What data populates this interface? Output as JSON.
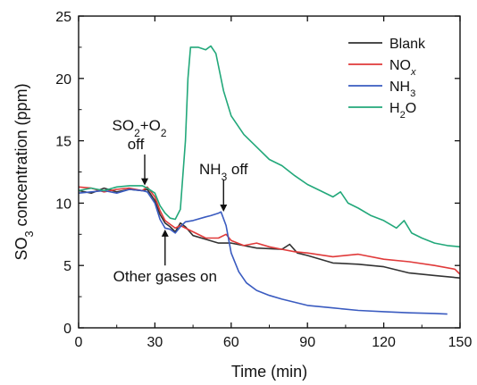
{
  "chart_data": {
    "type": "line",
    "title": "",
    "xlabel": "Time (min)",
    "ylabel": "SO3 concentration (ppm)",
    "xlim": [
      0,
      150
    ],
    "ylim": [
      0,
      25
    ],
    "x_ticks": [
      0,
      30,
      60,
      90,
      120,
      150
    ],
    "y_ticks": [
      0,
      5,
      10,
      15,
      20,
      25
    ],
    "grid": false,
    "legend_position": "top-right",
    "series": [
      {
        "name": "Blank",
        "color": "#333333",
        "x": [
          0,
          5,
          10,
          15,
          20,
          25,
          27,
          30,
          32,
          34,
          36,
          38,
          40,
          42,
          45,
          50,
          55,
          60,
          70,
          80,
          83,
          86,
          90,
          100,
          110,
          120,
          130,
          140,
          150
        ],
        "y": [
          11.0,
          10.8,
          11.2,
          10.9,
          11.1,
          11.0,
          11.1,
          10.2,
          9.1,
          8.4,
          8.1,
          7.7,
          8.4,
          8.1,
          7.4,
          7.1,
          6.8,
          6.8,
          6.4,
          6.3,
          6.7,
          6.0,
          5.8,
          5.2,
          5.1,
          4.9,
          4.4,
          4.2,
          4.0
        ]
      },
      {
        "name": "NOx",
        "color": "#e03a3a",
        "x": [
          0,
          5,
          10,
          15,
          20,
          25,
          27,
          30,
          32,
          34,
          36,
          38,
          40,
          45,
          50,
          55,
          58,
          60,
          65,
          70,
          75,
          80,
          85,
          90,
          100,
          110,
          120,
          130,
          140,
          148,
          150
        ],
        "y": [
          11.3,
          11.2,
          10.9,
          11.1,
          11.2,
          11.0,
          11.3,
          10.5,
          9.4,
          8.6,
          8.3,
          8.0,
          8.2,
          7.7,
          7.2,
          7.2,
          7.5,
          7.0,
          6.6,
          6.8,
          6.5,
          6.3,
          6.1,
          6.0,
          5.7,
          5.9,
          5.5,
          5.3,
          5.0,
          4.7,
          4.3
        ]
      },
      {
        "name": "NH3",
        "color": "#3a5bc0",
        "x": [
          0,
          5,
          10,
          15,
          20,
          25,
          27,
          30,
          32,
          34,
          36,
          38,
          40,
          42,
          45,
          50,
          52,
          55,
          56,
          58,
          60,
          63,
          66,
          70,
          75,
          80,
          90,
          100,
          110,
          120,
          130,
          140,
          145
        ],
        "y": [
          10.8,
          10.9,
          11.0,
          10.8,
          11.1,
          11.0,
          10.9,
          10.0,
          8.7,
          8.0,
          7.9,
          7.6,
          8.1,
          8.5,
          8.6,
          8.9,
          9.0,
          9.2,
          9.3,
          8.2,
          6.0,
          4.5,
          3.6,
          3.0,
          2.6,
          2.3,
          1.8,
          1.6,
          1.4,
          1.3,
          1.2,
          1.15,
          1.1
        ]
      },
      {
        "name": "H2O",
        "color": "#22a87a",
        "x": [
          0,
          5,
          10,
          15,
          20,
          25,
          27,
          30,
          32,
          34,
          36,
          38,
          40,
          42,
          43,
          44,
          47,
          50,
          52,
          54,
          57,
          60,
          65,
          70,
          75,
          80,
          85,
          90,
          95,
          100,
          103,
          106,
          110,
          115,
          120,
          125,
          128,
          131,
          135,
          140,
          145,
          150
        ],
        "y": [
          11.0,
          11.2,
          11.0,
          11.3,
          11.4,
          11.4,
          11.2,
          10.8,
          9.8,
          9.2,
          8.8,
          8.7,
          9.5,
          15.0,
          20.0,
          22.5,
          22.5,
          22.3,
          22.6,
          22.0,
          19.0,
          17.0,
          15.5,
          14.5,
          13.5,
          13.0,
          12.2,
          11.5,
          11.0,
          10.5,
          10.9,
          10.0,
          9.6,
          9.0,
          8.6,
          8.0,
          8.6,
          7.6,
          7.2,
          6.8,
          6.6,
          6.5
        ]
      }
    ],
    "annotations": [
      {
        "text_lines": [
          "SO2+O2",
          "off"
        ],
        "arrow_tail_x": 26,
        "arrow_head_x": 26,
        "arrow_tail_y": 13.9,
        "arrow_head_y": 11.7
      },
      {
        "text_lines": [
          "NH3 off"
        ],
        "arrow_tail_x": 57,
        "arrow_head_x": 57,
        "arrow_tail_y": 11.9,
        "arrow_head_y": 9.6
      },
      {
        "text_lines": [
          "Other gases on"
        ],
        "arrow_tail_x": 34,
        "arrow_head_x": 34,
        "arrow_tail_y": 5.0,
        "arrow_head_y": 7.6
      }
    ]
  }
}
